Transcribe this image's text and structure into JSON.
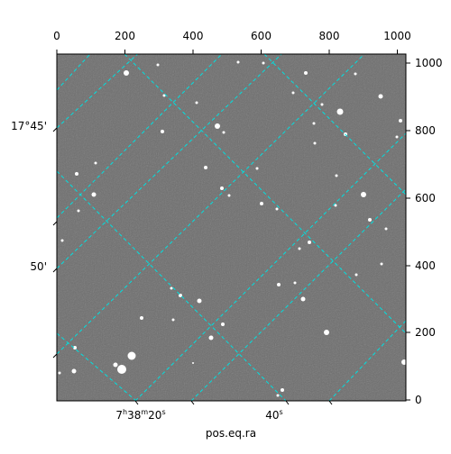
{
  "figure": {
    "xlabel": "pos.eq.ra",
    "top_ticks": [
      "0",
      "200",
      "400",
      "600",
      "800",
      "1000"
    ],
    "right_ticks": [
      "0",
      "200",
      "400",
      "600",
      "800",
      "1000"
    ],
    "dec_ticks": [
      "17°45'",
      "50'"
    ],
    "ra_ticks": [
      {
        "h": "7",
        "m": "38",
        "s": "20"
      },
      {
        "s": "40"
      }
    ]
  },
  "colors": {
    "image_background": "#6e6e6e",
    "grid_lines": "#00e0e0",
    "stars": "#ffffff"
  }
}
